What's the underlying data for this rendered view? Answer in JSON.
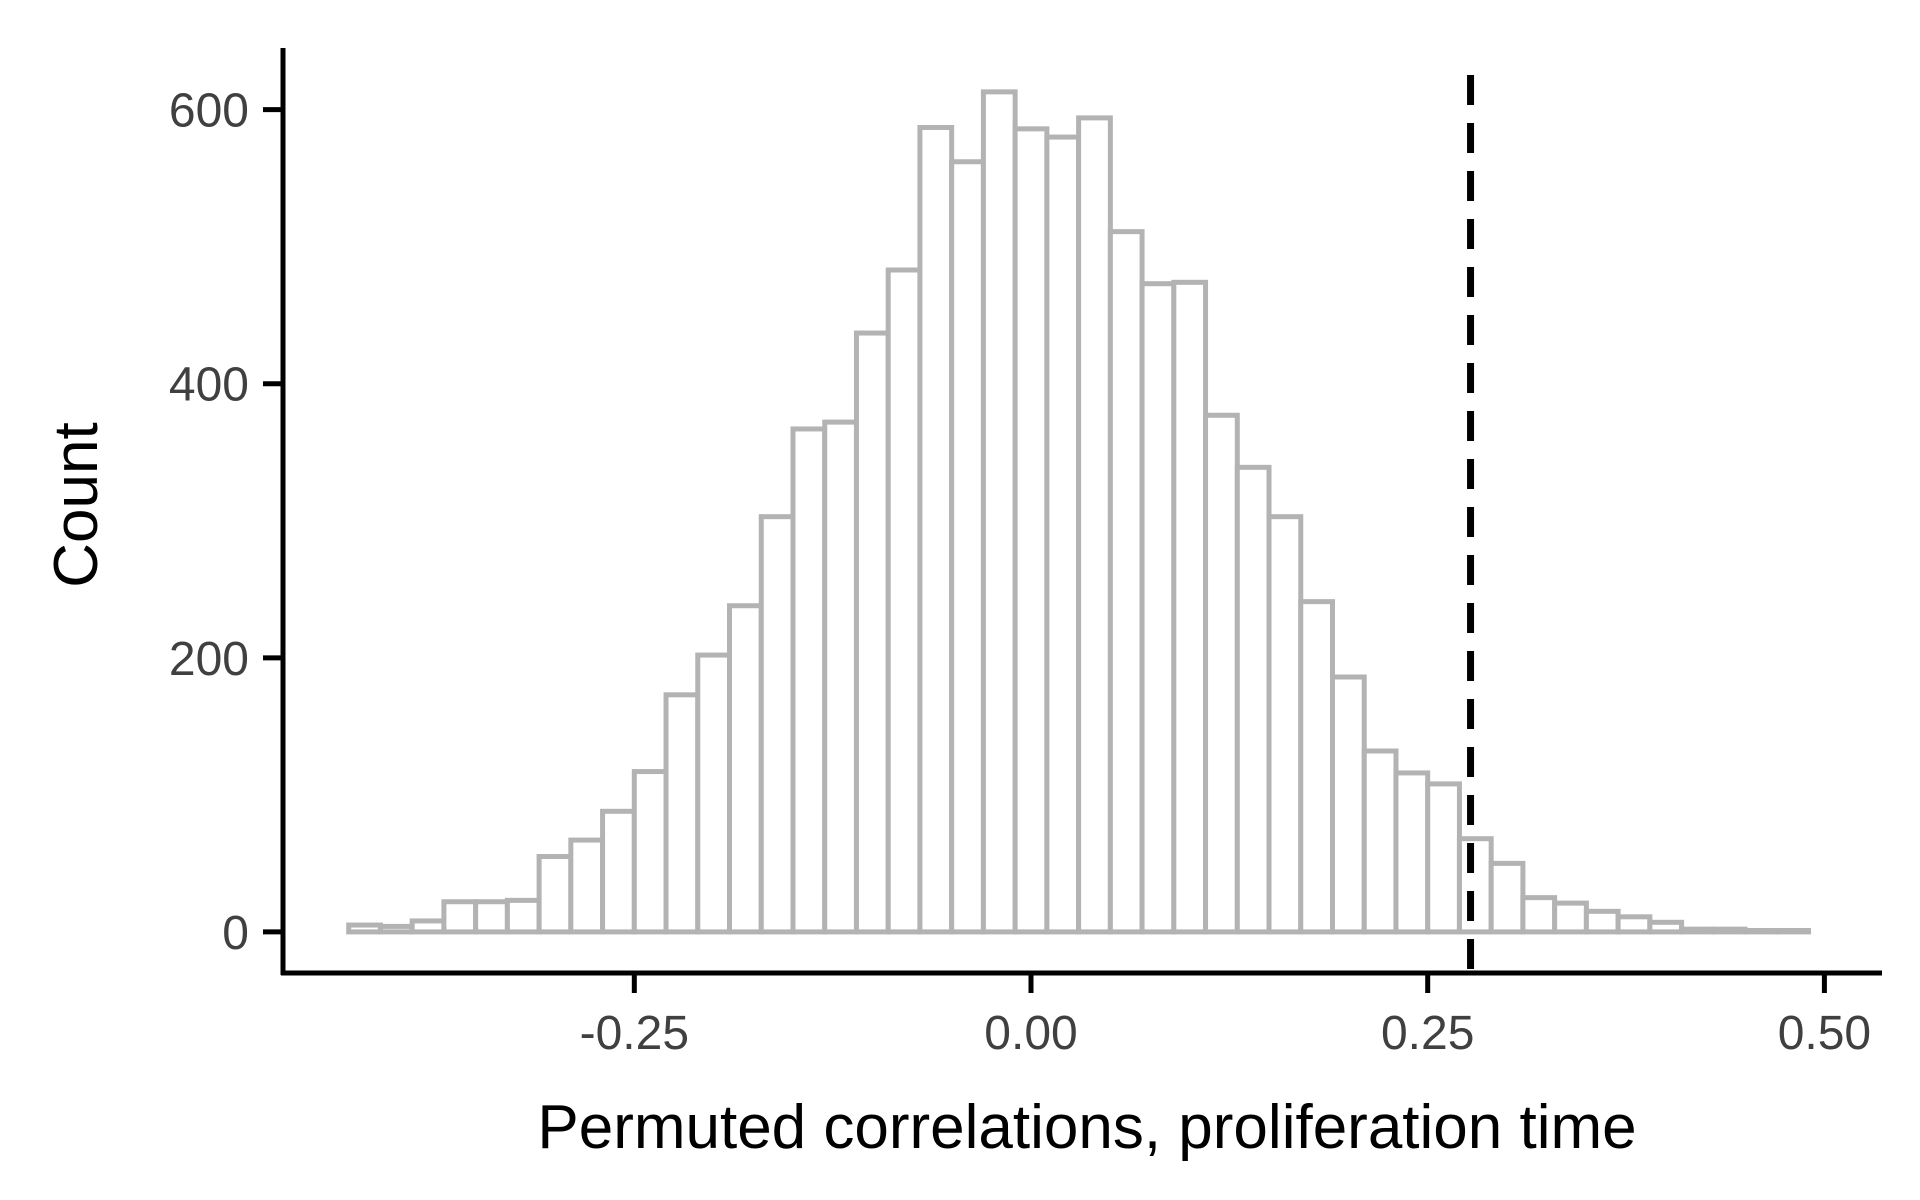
{
  "chart_data": {
    "type": "bar",
    "subtype": "histogram",
    "xlabel": "Permuted correlations, proliferation time",
    "ylabel": "Count",
    "x_ticks": [
      {
        "value": -0.25,
        "label": "-0.25"
      },
      {
        "value": 0.0,
        "label": "0.00"
      },
      {
        "value": 0.25,
        "label": "0.25"
      },
      {
        "value": 0.5,
        "label": "0.50"
      }
    ],
    "y_ticks": [
      {
        "value": 0,
        "label": "0"
      },
      {
        "value": 200,
        "label": "200"
      },
      {
        "value": 400,
        "label": "400"
      },
      {
        "value": 600,
        "label": "600"
      }
    ],
    "xlim": [
      -0.4714,
      0.5363
    ],
    "ylim": [
      -30,
      645
    ],
    "bin_start": -0.43,
    "bin_width": 0.02,
    "counts": [
      5,
      4,
      8,
      22,
      22,
      23,
      55,
      67,
      88,
      117,
      173,
      202,
      238,
      303,
      367,
      372,
      437,
      483,
      587,
      562,
      613,
      586,
      580,
      594,
      511,
      473,
      474,
      377,
      339,
      303,
      241,
      186,
      132,
      116,
      108,
      68,
      50,
      25,
      21,
      15,
      11,
      7,
      2,
      2,
      1,
      1
    ],
    "reference_line": {
      "x": 0.277,
      "style": "dashed",
      "color": "#000000"
    },
    "bar_stroke": "#b3b3b3",
    "bar_fill": "#ffffff",
    "grid": false
  }
}
